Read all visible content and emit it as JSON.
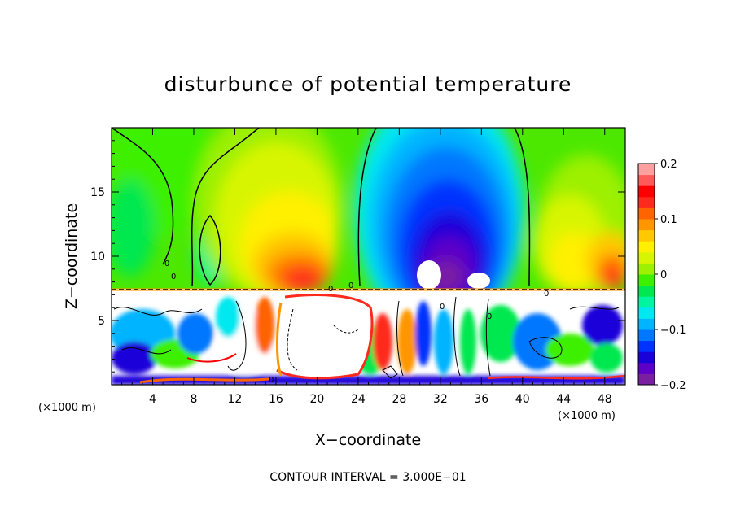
{
  "chart_data": {
    "type": "heatmap",
    "title": "disturbunce of potential temperature",
    "xlabel": "X−coordinate",
    "ylabel": "Z−coordinate",
    "x_unit_left": "(×1000 m)",
    "x_unit_right": "(×1000 m)",
    "footer": "CONTOUR INTERVAL = 3.000E−01",
    "xlim": [
      0,
      50
    ],
    "ylim": [
      0,
      20
    ],
    "x_ticks": [
      4,
      8,
      12,
      16,
      20,
      24,
      28,
      32,
      36,
      40,
      44,
      48
    ],
    "x_tick_labels": [
      "4",
      "8",
      "12",
      "16",
      "20",
      "24",
      "28",
      "32",
      "36",
      "40",
      "44",
      "48"
    ],
    "y_ticks": [
      5,
      10,
      15
    ],
    "y_tick_labels": [
      "5",
      "10",
      "15"
    ],
    "colorbar": {
      "range": [
        -0.2,
        0.2
      ],
      "ticks": [
        0.2,
        0.1,
        0,
        -0.1,
        -0.2
      ],
      "tick_labels": [
        "0.2",
        "0.1",
        "0",
        "−0.1",
        "−0.2"
      ],
      "colors": [
        "#7a1fa2",
        "#5c00c8",
        "#1a00d9",
        "#0033ff",
        "#0077ff",
        "#00b4ff",
        "#00e8f0",
        "#00f5a0",
        "#00e850",
        "#3cf000",
        "#9cf000",
        "#d8f500",
        "#fff000",
        "#ffc800",
        "#ff9600",
        "#ff6400",
        "#ff2a1e",
        "#ff0000",
        "#ff5a5a",
        "#ffa0a0"
      ]
    },
    "contour_labels": [
      "0",
      "0",
      "0",
      "0",
      "0",
      "0",
      "0",
      "0"
    ]
  }
}
